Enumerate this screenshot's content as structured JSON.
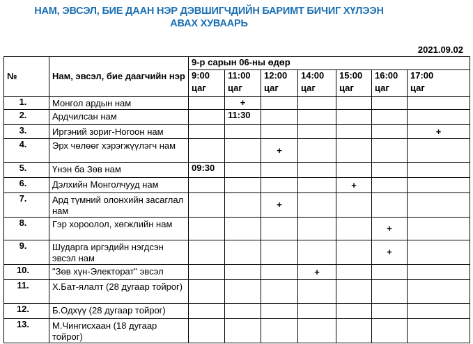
{
  "title_line1": "НАМ, ЭВСЭЛ, БИЕ ДААН НЭР ДЭВШИГЧДИЙН БАРИМТ БИЧИГ ХҮЛЭЭН",
  "title_line2": "АВАХ ХУВААРЬ",
  "date": "2021.09.02",
  "header": {
    "no": "№",
    "name": "Нам, эвсэл, бие даагчийн нэр",
    "day": "9-р сарын 06-ны өдөр",
    "times": [
      {
        "time": "9:00",
        "unit": "цаг"
      },
      {
        "time": "11:00",
        "unit": "цаг"
      },
      {
        "time": "12:00",
        "unit": "цаг"
      },
      {
        "time": "14:00",
        "unit": "цаг"
      },
      {
        "time": "15:00",
        "unit": "цаг"
      },
      {
        "time": "16:00",
        "unit": "цаг"
      },
      {
        "time": "17:00",
        "unit": "цаг"
      }
    ]
  },
  "rows": [
    {
      "no": "1.",
      "name": "Монгол ардын нам",
      "cells": [
        "",
        "+",
        "",
        "",
        "",
        "",
        ""
      ]
    },
    {
      "no": "2.",
      "name": "Ардчилсан нам",
      "cells": [
        "",
        "11:30",
        "",
        "",
        "",
        "",
        ""
      ]
    },
    {
      "no": "3.",
      "name": "Иргэний зориг-Ногоон нам",
      "cells": [
        "",
        "",
        "",
        "",
        "",
        "",
        "+"
      ]
    },
    {
      "no": "4.",
      "name": "Эрх чөлөөг хэрэгжүүлэгч нам",
      "cells": [
        "",
        "",
        "+",
        "",
        "",
        "",
        ""
      ]
    },
    {
      "no": "5.",
      "name": "Үнэн ба Зөв нам",
      "cells": [
        "09:30",
        "",
        "",
        "",
        "",
        "",
        ""
      ]
    },
    {
      "no": "6.",
      "name": "Дэлхийн Монголчууд нам",
      "cells": [
        "",
        "",
        "",
        "",
        "+",
        "",
        ""
      ]
    },
    {
      "no": "7.",
      "name": "Ард түмний олонхийн засаглал нам",
      "cells": [
        "",
        "",
        "+",
        "",
        "",
        "",
        ""
      ]
    },
    {
      "no": "8.",
      "name": "Гэр хороолол, хөгжлийн нам",
      "cells": [
        "",
        "",
        "",
        "",
        "",
        "+",
        ""
      ]
    },
    {
      "no": "9.",
      "name": "Шударга иргэдийн нэгдсэн эвсэл нам",
      "cells": [
        "",
        "",
        "",
        "",
        "",
        "+",
        ""
      ]
    },
    {
      "no": "10.",
      "name": "\"Зөв хүн-Электорат\" эвсэл",
      "cells": [
        "",
        "",
        "",
        "+",
        "",
        "",
        ""
      ]
    },
    {
      "no": "11.",
      "name": "Х.Бат-ялалт (28 дугаар тойрог)",
      "cells": [
        "",
        "",
        "",
        "",
        "",
        "",
        ""
      ]
    },
    {
      "no": "12.",
      "name": "Б.Одхүү (28 дугаар тойрог)",
      "cells": [
        "",
        "",
        "",
        "",
        "",
        "",
        ""
      ]
    },
    {
      "no": "13.",
      "name": "М.Чингисхаан (18 дугаар тойрог)",
      "cells": [
        "",
        "",
        "",
        "",
        "",
        "",
        ""
      ]
    }
  ]
}
